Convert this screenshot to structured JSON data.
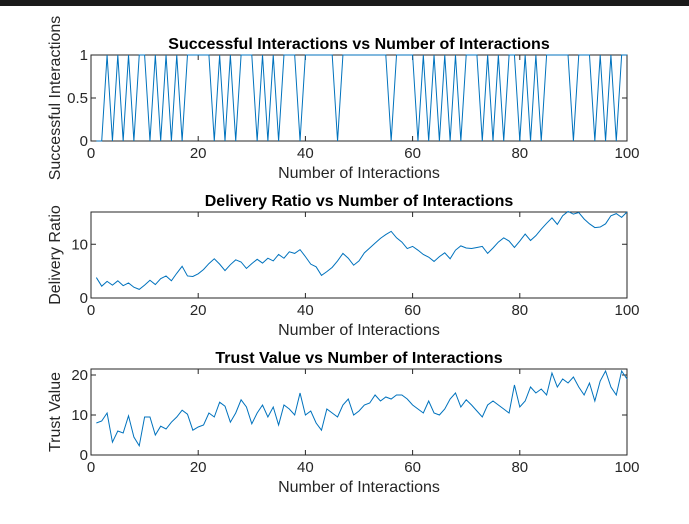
{
  "figure": {
    "line_color": "#0072BD",
    "top_bar_color": "#1a1a1a"
  },
  "chart_data": [
    {
      "type": "line",
      "title": "Successful Interactions vs Number of Interactions",
      "xlabel": "Number of Interactions",
      "ylabel": "Successful Interactions",
      "xlim": [
        0,
        100
      ],
      "ylim": [
        0,
        1
      ],
      "xticks": [
        "0",
        "20",
        "40",
        "60",
        "80",
        "100"
      ],
      "yticks": [
        "0",
        "0.5",
        "1"
      ],
      "grid": false,
      "series": [
        {
          "x": [
            1,
            2,
            3,
            4,
            5,
            6,
            7,
            8,
            9,
            10,
            11,
            12,
            13,
            14,
            15,
            16,
            17,
            18,
            19,
            20,
            21,
            22,
            23,
            24,
            25,
            26,
            27,
            28,
            29,
            30,
            31,
            32,
            33,
            34,
            35,
            36,
            37,
            38,
            39,
            40,
            41,
            42,
            43,
            44,
            45,
            46,
            47,
            48,
            49,
            50,
            51,
            52,
            53,
            54,
            55,
            56,
            57,
            58,
            59,
            60,
            61,
            62,
            63,
            64,
            65,
            66,
            67,
            68,
            69,
            70,
            71,
            72,
            73,
            74,
            75,
            76,
            77,
            78,
            79,
            80,
            81,
            82,
            83,
            84,
            85,
            86,
            87,
            88,
            89,
            90,
            91,
            92,
            93,
            94,
            95,
            96,
            97,
            98,
            99,
            100
          ],
          "values": [
            0,
            0,
            1,
            0,
            1,
            0,
            1,
            0,
            1,
            1,
            0,
            1,
            0,
            1,
            0,
            1,
            0,
            1,
            1,
            1,
            1,
            1,
            0,
            1,
            0,
            1,
            0,
            1,
            1,
            1,
            0,
            1,
            0,
            1,
            0,
            1,
            1,
            1,
            0,
            1,
            1,
            1,
            1,
            1,
            1,
            0,
            1,
            1,
            1,
            1,
            1,
            1,
            1,
            1,
            1,
            0,
            1,
            1,
            1,
            1,
            0,
            1,
            0,
            1,
            0,
            1,
            0,
            1,
            0,
            1,
            1,
            1,
            0,
            1,
            0,
            1,
            0,
            1,
            1,
            0,
            1,
            0,
            1,
            0,
            1,
            1,
            1,
            1,
            1,
            0,
            1,
            1,
            1,
            0,
            1,
            0,
            1,
            0,
            1,
            1
          ]
        }
      ]
    },
    {
      "type": "line",
      "title": "Delivery Ratio vs Number of Interactions",
      "xlabel": "Number of Interactions",
      "ylabel": "Delivery Ratio",
      "xlim": [
        0,
        100
      ],
      "ylim": [
        0,
        16
      ],
      "xticks": [
        "0",
        "20",
        "40",
        "60",
        "80",
        "100"
      ],
      "yticks": [
        "0",
        "10"
      ],
      "grid": false,
      "series": [
        {
          "x": [
            1,
            2,
            3,
            4,
            5,
            6,
            7,
            8,
            9,
            10,
            11,
            12,
            13,
            14,
            15,
            16,
            17,
            18,
            19,
            20,
            21,
            22,
            23,
            24,
            25,
            26,
            27,
            28,
            29,
            30,
            31,
            32,
            33,
            34,
            35,
            36,
            37,
            38,
            39,
            40,
            41,
            42,
            43,
            44,
            45,
            46,
            47,
            48,
            49,
            50,
            51,
            52,
            53,
            54,
            55,
            56,
            57,
            58,
            59,
            60,
            61,
            62,
            63,
            64,
            65,
            66,
            67,
            68,
            69,
            70,
            71,
            72,
            73,
            74,
            75,
            76,
            77,
            78,
            79,
            80,
            81,
            82,
            83,
            84,
            85,
            86,
            87,
            88,
            89,
            90,
            91,
            92,
            93,
            94,
            95,
            96,
            97,
            98,
            99,
            100
          ],
          "values": [
            3.8,
            2.2,
            3.1,
            2.4,
            3.2,
            2.3,
            2.8,
            2.0,
            1.6,
            2.4,
            3.3,
            2.5,
            3.6,
            4.1,
            3.2,
            4.6,
            5.9,
            4.1,
            4.0,
            4.5,
            5.3,
            6.4,
            7.3,
            6.3,
            5.1,
            6.2,
            7.1,
            6.7,
            5.5,
            6.4,
            7.2,
            6.5,
            7.4,
            6.9,
            8.1,
            7.4,
            8.6,
            8.3,
            9.0,
            7.7,
            6.3,
            5.8,
            4.2,
            4.9,
            5.7,
            6.9,
            8.3,
            7.4,
            6.1,
            6.9,
            8.4,
            9.3,
            10.2,
            11.1,
            11.8,
            12.4,
            11.2,
            10.4,
            9.2,
            9.6,
            8.9,
            8.1,
            7.6,
            6.8,
            7.7,
            8.4,
            7.3,
            8.9,
            9.7,
            9.3,
            9.2,
            9.4,
            9.6,
            8.3,
            9.3,
            10.4,
            11.2,
            10.6,
            9.4,
            10.6,
            11.9,
            10.7,
            11.6,
            12.8,
            13.9,
            14.9,
            13.7,
            15.3,
            16.1,
            15.6,
            15.9,
            14.7,
            13.8,
            13.1,
            13.2,
            13.8,
            15.3,
            15.7,
            15.0,
            16.0
          ]
        }
      ]
    },
    {
      "type": "line",
      "title": "Trust Value vs Number of Interactions",
      "xlabel": "Number of Interactions",
      "ylabel": "Trust Value",
      "xlim": [
        0,
        100
      ],
      "ylim": [
        0,
        21.5
      ],
      "xticks": [
        "0",
        "20",
        "40",
        "60",
        "80",
        "100"
      ],
      "yticks": [
        "0",
        "10",
        "20"
      ],
      "grid": false,
      "series": [
        {
          "x": [
            1,
            2,
            3,
            4,
            5,
            6,
            7,
            8,
            9,
            10,
            11,
            12,
            13,
            14,
            15,
            16,
            17,
            18,
            19,
            20,
            21,
            22,
            23,
            24,
            25,
            26,
            27,
            28,
            29,
            30,
            31,
            32,
            33,
            34,
            35,
            36,
            37,
            38,
            39,
            40,
            41,
            42,
            43,
            44,
            45,
            46,
            47,
            48,
            49,
            50,
            51,
            52,
            53,
            54,
            55,
            56,
            57,
            58,
            59,
            60,
            61,
            62,
            63,
            64,
            65,
            66,
            67,
            68,
            69,
            70,
            71,
            72,
            73,
            74,
            75,
            76,
            77,
            78,
            79,
            80,
            81,
            82,
            83,
            84,
            85,
            86,
            87,
            88,
            89,
            90,
            91,
            92,
            93,
            94,
            95,
            96,
            97,
            98,
            99,
            100
          ],
          "values": [
            8.0,
            8.5,
            10.5,
            3.2,
            6.0,
            5.5,
            9.8,
            4.5,
            2.3,
            9.5,
            9.5,
            5.0,
            7.2,
            6.5,
            8.2,
            9.5,
            11.2,
            10.2,
            6.2,
            7.0,
            7.5,
            10.5,
            9.5,
            13.2,
            12.2,
            8.2,
            10.5,
            13.8,
            12.0,
            7.8,
            10.5,
            12.5,
            9.5,
            12.0,
            7.5,
            12.5,
            11.5,
            10.0,
            15.5,
            10.0,
            11.0,
            8.0,
            6.2,
            11.5,
            10.5,
            9.5,
            12.5,
            14.0,
            10.0,
            11.0,
            12.5,
            13.0,
            15.0,
            13.5,
            14.5,
            14.0,
            15.0,
            15.0,
            14.0,
            12.5,
            11.5,
            10.5,
            13.5,
            10.5,
            10.0,
            11.5,
            14.0,
            15.5,
            12.0,
            13.8,
            12.5,
            11.0,
            9.5,
            12.5,
            13.5,
            12.5,
            11.5,
            10.5,
            17.5,
            12.0,
            13.5,
            17.0,
            15.5,
            16.5,
            15.0,
            20.5,
            17.0,
            19.0,
            18.0,
            19.5,
            17.0,
            15.0,
            18.0,
            13.5,
            18.5,
            21.0,
            17.0,
            15.0,
            21.0,
            19.0
          ]
        }
      ]
    }
  ]
}
